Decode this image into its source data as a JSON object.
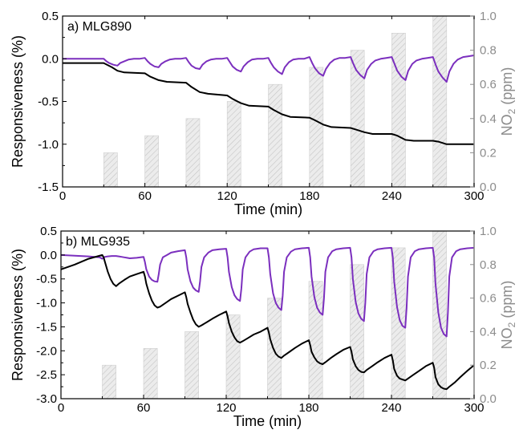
{
  "chart_data": [
    {
      "type": "line",
      "panel_label": "a) MLG890",
      "xlabel": "Time (min)",
      "ylabel": "Responsiveness (%)",
      "y2label_base": "NO",
      "y2label_sub": "2",
      "y2label_rest": " (ppm)",
      "xlim": [
        0,
        300
      ],
      "ylim": [
        -1.5,
        0.5
      ],
      "y2lim": [
        0.0,
        1.0
      ],
      "xticks": [
        0,
        60,
        120,
        180,
        240,
        300
      ],
      "yticks": [
        -1.5,
        -1.0,
        -0.5,
        0.0,
        0.5
      ],
      "ytick_labels": [
        "-1.5",
        "-1.0",
        "-0.5",
        "0.0",
        "0.5"
      ],
      "y2ticks": [
        0.0,
        0.2,
        0.4,
        0.6,
        0.8,
        1.0
      ],
      "y2tick_labels": [
        "0.0",
        "0.2",
        "0.4",
        "0.6",
        "0.8",
        "1.0"
      ],
      "bars": {
        "axis": "right",
        "color": "#d9d9d9",
        "hatch": true,
        "items": [
          {
            "x0": 30,
            "x1": 40,
            "value": 0.2
          },
          {
            "x0": 60,
            "x1": 70,
            "value": 0.3
          },
          {
            "x0": 90,
            "x1": 100,
            "value": 0.4
          },
          {
            "x0": 120,
            "x1": 130,
            "value": 0.5
          },
          {
            "x0": 150,
            "x1": 160,
            "value": 0.6
          },
          {
            "x0": 180,
            "x1": 190,
            "value": 0.7
          },
          {
            "x0": 210,
            "x1": 220,
            "value": 0.8
          },
          {
            "x0": 240,
            "x1": 250,
            "value": 0.9
          },
          {
            "x0": 270,
            "x1": 280,
            "value": 1.0
          }
        ]
      },
      "series": [
        {
          "color": "#7b2fbe",
          "x": [
            0,
            30,
            32,
            34,
            37,
            40,
            42,
            45,
            48,
            52,
            56,
            60,
            62,
            64,
            67,
            70,
            72,
            75,
            78,
            82,
            86,
            90,
            92,
            94,
            97,
            100,
            102,
            105,
            108,
            112,
            116,
            120,
            122,
            124,
            127,
            130,
            132,
            135,
            138,
            142,
            146,
            150,
            152,
            154,
            157,
            160,
            162,
            165,
            168,
            172,
            176,
            180,
            182,
            184,
            187,
            190,
            192,
            195,
            198,
            202,
            206,
            210,
            212,
            214,
            217,
            220,
            222,
            225,
            228,
            232,
            236,
            240,
            242,
            244,
            247,
            250,
            252,
            255,
            258,
            262,
            266,
            270,
            272,
            274,
            277,
            280,
            282,
            285,
            288,
            292,
            296,
            300
          ],
          "y": [
            0.0,
            0.0,
            -0.03,
            -0.05,
            -0.07,
            -0.08,
            -0.05,
            -0.03,
            -0.01,
            0.0,
            0.0,
            0.01,
            -0.03,
            -0.06,
            -0.09,
            -0.1,
            -0.06,
            -0.03,
            -0.01,
            0.0,
            0.0,
            0.01,
            -0.04,
            -0.08,
            -0.11,
            -0.12,
            -0.07,
            -0.03,
            -0.01,
            0.0,
            0.0,
            0.01,
            -0.04,
            -0.09,
            -0.13,
            -0.15,
            -0.09,
            -0.04,
            -0.01,
            0.0,
            0.0,
            0.01,
            -0.05,
            -0.1,
            -0.15,
            -0.18,
            -0.1,
            -0.04,
            -0.01,
            0.0,
            0.0,
            0.02,
            -0.05,
            -0.11,
            -0.17,
            -0.2,
            -0.12,
            -0.05,
            -0.01,
            0.01,
            0.01,
            0.02,
            -0.06,
            -0.13,
            -0.19,
            -0.23,
            -0.13,
            -0.06,
            -0.02,
            0.0,
            0.01,
            0.02,
            -0.06,
            -0.14,
            -0.21,
            -0.25,
            -0.14,
            -0.06,
            -0.02,
            0.0,
            0.01,
            0.02,
            -0.07,
            -0.15,
            -0.22,
            -0.27,
            -0.15,
            -0.06,
            -0.01,
            0.02,
            0.03,
            0.04
          ]
        },
        {
          "color": "#000000",
          "x": [
            0,
            30,
            36,
            40,
            45,
            60,
            64,
            70,
            76,
            90,
            94,
            100,
            106,
            120,
            124,
            130,
            136,
            150,
            154,
            160,
            166,
            180,
            184,
            190,
            196,
            210,
            214,
            220,
            226,
            240,
            244,
            250,
            256,
            270,
            274,
            280,
            286,
            300
          ],
          "y": [
            -0.05,
            -0.05,
            -0.1,
            -0.14,
            -0.16,
            -0.17,
            -0.21,
            -0.25,
            -0.27,
            -0.28,
            -0.33,
            -0.39,
            -0.41,
            -0.43,
            -0.47,
            -0.52,
            -0.55,
            -0.56,
            -0.6,
            -0.65,
            -0.68,
            -0.69,
            -0.72,
            -0.77,
            -0.8,
            -0.81,
            -0.83,
            -0.86,
            -0.88,
            -0.88,
            -0.9,
            -0.95,
            -0.96,
            -0.96,
            -0.97,
            -1.0,
            -1.0,
            -1.0
          ]
        }
      ]
    },
    {
      "type": "line",
      "panel_label": "b) MLG935",
      "xlabel": "Time (min)",
      "ylabel": "Responsiveness (%)",
      "y2label_base": "NO",
      "y2label_sub": "2",
      "y2label_rest": " (ppm)",
      "xlim": [
        0,
        300
      ],
      "ylim": [
        -3.0,
        0.5
      ],
      "y2lim": [
        0.0,
        1.0
      ],
      "xticks": [
        0,
        60,
        120,
        180,
        240,
        300
      ],
      "yticks": [
        -3.0,
        -2.5,
        -2.0,
        -1.5,
        -1.0,
        -0.5,
        0.0,
        0.5
      ],
      "ytick_labels": [
        "-3.0",
        "-2.5",
        "-2.0",
        "-1.5",
        "-1.0",
        "-0.5",
        "0.0",
        "0.5"
      ],
      "y2ticks": [
        0.0,
        0.2,
        0.4,
        0.6,
        0.8,
        1.0
      ],
      "y2tick_labels": [
        "0.0",
        "0.2",
        "0.4",
        "0.6",
        "0.8",
        "1.0"
      ],
      "bars": {
        "axis": "right",
        "color": "#d9d9d9",
        "hatch": true,
        "items": [
          {
            "x0": 30,
            "x1": 40,
            "value": 0.2
          },
          {
            "x0": 60,
            "x1": 70,
            "value": 0.3
          },
          {
            "x0": 90,
            "x1": 100,
            "value": 0.4
          },
          {
            "x0": 120,
            "x1": 130,
            "value": 0.5
          },
          {
            "x0": 150,
            "x1": 160,
            "value": 0.6
          },
          {
            "x0": 180,
            "x1": 190,
            "value": 0.7
          },
          {
            "x0": 210,
            "x1": 220,
            "value": 0.8
          },
          {
            "x0": 240,
            "x1": 250,
            "value": 0.9
          },
          {
            "x0": 270,
            "x1": 280,
            "value": 1.0
          }
        ]
      },
      "series": [
        {
          "color": "#7b2fbe",
          "x": [
            0,
            20,
            28,
            30,
            32,
            34,
            37,
            40,
            42,
            44,
            46,
            48,
            50,
            55,
            60,
            61,
            62,
            64,
            66,
            68,
            70,
            71,
            72,
            74,
            77,
            80,
            85,
            90,
            91,
            92,
            94,
            96,
            98,
            100,
            101,
            102,
            104,
            107,
            110,
            115,
            120,
            121,
            122,
            124,
            126,
            128,
            130,
            131,
            132,
            134,
            137,
            140,
            145,
            150,
            151,
            152,
            154,
            156,
            158,
            160,
            161,
            162,
            164,
            167,
            170,
            175,
            180,
            181,
            182,
            184,
            186,
            188,
            190,
            191,
            192,
            194,
            197,
            200,
            205,
            210,
            211,
            212,
            214,
            216,
            218,
            220,
            221,
            222,
            224,
            227,
            230,
            235,
            240,
            241,
            242,
            244,
            246,
            248,
            250,
            251,
            252,
            254,
            257,
            260,
            265,
            270,
            271,
            272,
            274,
            276,
            278,
            280,
            281,
            282,
            284,
            287,
            290,
            295,
            300
          ],
          "y": [
            0.0,
            -0.03,
            -0.05,
            -0.08,
            -0.04,
            -0.03,
            -0.02,
            -0.02,
            -0.03,
            -0.04,
            -0.05,
            -0.06,
            -0.07,
            -0.06,
            -0.04,
            -0.15,
            -0.3,
            -0.45,
            -0.52,
            -0.55,
            -0.56,
            -0.4,
            -0.2,
            -0.05,
            0.0,
            0.05,
            0.08,
            0.1,
            -0.05,
            -0.3,
            -0.55,
            -0.68,
            -0.74,
            -0.77,
            -0.55,
            -0.25,
            -0.05,
            0.05,
            0.1,
            0.12,
            0.13,
            -0.05,
            -0.35,
            -0.67,
            -0.84,
            -0.92,
            -0.96,
            -0.7,
            -0.3,
            -0.05,
            0.07,
            0.12,
            0.14,
            0.14,
            -0.05,
            -0.4,
            -0.8,
            -1.0,
            -1.1,
            -1.15,
            -0.85,
            -0.35,
            -0.05,
            0.07,
            0.12,
            0.14,
            0.15,
            -0.05,
            -0.45,
            -0.88,
            -1.1,
            -1.2,
            -1.25,
            -0.9,
            -0.35,
            -0.05,
            0.08,
            0.12,
            0.14,
            0.15,
            -0.05,
            -0.5,
            -0.98,
            -1.22,
            -1.33,
            -1.38,
            -1.0,
            -0.4,
            -0.05,
            0.08,
            0.12,
            0.14,
            0.15,
            -0.05,
            -0.55,
            -1.08,
            -1.36,
            -1.48,
            -1.52,
            -1.1,
            -0.45,
            -0.05,
            0.08,
            0.12,
            0.14,
            0.15,
            -0.05,
            -0.6,
            -1.2,
            -1.52,
            -1.65,
            -1.7,
            -1.2,
            -0.45,
            -0.05,
            0.08,
            0.12,
            0.14,
            0.15
          ]
        },
        {
          "color": "#000000",
          "x": [
            0,
            10,
            20,
            30,
            31,
            32,
            34,
            36,
            38,
            40,
            42,
            46,
            50,
            55,
            60,
            61,
            62,
            64,
            66,
            68,
            70,
            72,
            76,
            80,
            85,
            90,
            91,
            92,
            94,
            96,
            98,
            100,
            102,
            106,
            110,
            115,
            120,
            121,
            122,
            124,
            126,
            128,
            130,
            132,
            136,
            140,
            145,
            150,
            151,
            152,
            154,
            156,
            158,
            160,
            162,
            166,
            170,
            175,
            180,
            181,
            182,
            184,
            186,
            188,
            190,
            192,
            196,
            200,
            205,
            210,
            211,
            212,
            214,
            216,
            218,
            220,
            222,
            226,
            230,
            235,
            240,
            241,
            242,
            244,
            246,
            248,
            250,
            252,
            256,
            260,
            265,
            270,
            271,
            272,
            274,
            276,
            278,
            280,
            282,
            286,
            290,
            295,
            300
          ],
          "y": [
            -0.3,
            -0.2,
            -0.08,
            0.0,
            -0.05,
            -0.15,
            -0.35,
            -0.5,
            -0.6,
            -0.65,
            -0.6,
            -0.52,
            -0.45,
            -0.4,
            -0.35,
            -0.45,
            -0.6,
            -0.8,
            -0.95,
            -1.05,
            -1.1,
            -1.08,
            -1.0,
            -0.92,
            -0.85,
            -0.78,
            -0.88,
            -1.02,
            -1.2,
            -1.35,
            -1.45,
            -1.5,
            -1.47,
            -1.4,
            -1.33,
            -1.25,
            -1.18,
            -1.28,
            -1.42,
            -1.6,
            -1.72,
            -1.8,
            -1.83,
            -1.8,
            -1.73,
            -1.66,
            -1.6,
            -1.52,
            -1.62,
            -1.76,
            -1.94,
            -2.06,
            -2.12,
            -2.15,
            -2.1,
            -2.02,
            -1.94,
            -1.85,
            -1.78,
            -1.88,
            -2.02,
            -2.14,
            -2.22,
            -2.26,
            -2.28,
            -2.24,
            -2.15,
            -2.07,
            -1.98,
            -1.92,
            -2.02,
            -2.18,
            -2.32,
            -2.4,
            -2.44,
            -2.45,
            -2.4,
            -2.32,
            -2.24,
            -2.15,
            -2.08,
            -2.2,
            -2.38,
            -2.52,
            -2.58,
            -2.6,
            -2.62,
            -2.58,
            -2.5,
            -2.42,
            -2.32,
            -2.25,
            -2.35,
            -2.55,
            -2.7,
            -2.76,
            -2.79,
            -2.8,
            -2.75,
            -2.66,
            -2.55,
            -2.42,
            -2.3
          ]
        }
      ]
    }
  ]
}
